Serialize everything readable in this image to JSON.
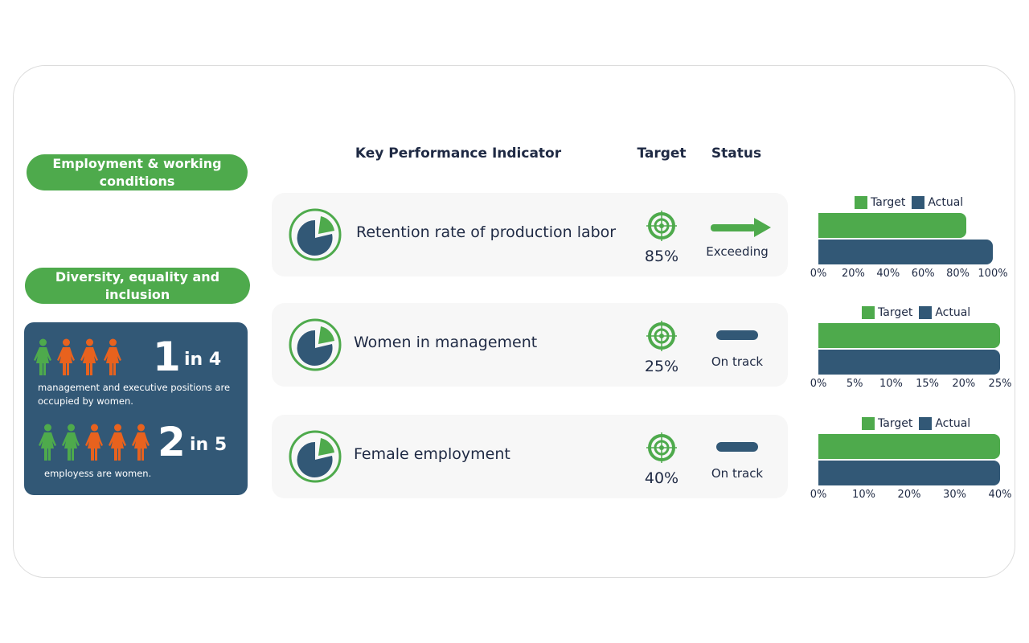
{
  "sections": {
    "employment": "Employment & working conditions",
    "diversity": "Diversity, equality and inclusion"
  },
  "headers": {
    "kpi": "Key Performance Indicator",
    "target": "Target",
    "status": "Status"
  },
  "diversity_box": {
    "stat1": {
      "num": "1",
      "rest": "in 4",
      "desc": "management and executive positions are occupied by women.",
      "green": 1,
      "total": 4
    },
    "stat2": {
      "num": "2",
      "rest": "in 5",
      "desc": "employess are women.",
      "green": 2,
      "total": 5
    }
  },
  "rows": [
    {
      "kpi": "Retention rate of production labor",
      "target": "85%",
      "status": "Exceeding",
      "status_icon": "arrow-right-icon"
    },
    {
      "kpi": "Women in management",
      "target": "25%",
      "status": "On track",
      "status_icon": "dash-icon"
    },
    {
      "kpi": "Female employment",
      "target": "40%",
      "status": "On track",
      "status_icon": "dash-icon"
    }
  ],
  "colors": {
    "green": "#4eaa4c",
    "navy": "#325876",
    "orange": "#e8621e"
  },
  "chart_data": [
    {
      "type": "bar",
      "orientation": "horizontal",
      "legend": [
        "Target",
        "Actual"
      ],
      "legend_position": "top",
      "series": [
        {
          "name": "Target",
          "values": [
            85
          ]
        },
        {
          "name": "Actual",
          "values": [
            100
          ]
        }
      ],
      "xlim": [
        0,
        100
      ],
      "ticks": [
        "0%",
        "20%",
        "40%",
        "60%",
        "80%",
        "100%"
      ]
    },
    {
      "type": "bar",
      "orientation": "horizontal",
      "legend": [
        "Target",
        "Actual"
      ],
      "legend_position": "top",
      "series": [
        {
          "name": "Target",
          "values": [
            25
          ]
        },
        {
          "name": "Actual",
          "values": [
            25
          ]
        }
      ],
      "xlim": [
        0,
        25
      ],
      "ticks": [
        "0%",
        "5%",
        "10%",
        "15%",
        "20%",
        "25%"
      ]
    },
    {
      "type": "bar",
      "orientation": "horizontal",
      "legend": [
        "Target",
        "Actual"
      ],
      "legend_position": "top",
      "series": [
        {
          "name": "Target",
          "values": [
            40
          ]
        },
        {
          "name": "Actual",
          "values": [
            40
          ]
        }
      ],
      "xlim": [
        0,
        40
      ],
      "ticks": [
        "0%",
        "10%",
        "20%",
        "30%",
        "40%"
      ]
    }
  ]
}
